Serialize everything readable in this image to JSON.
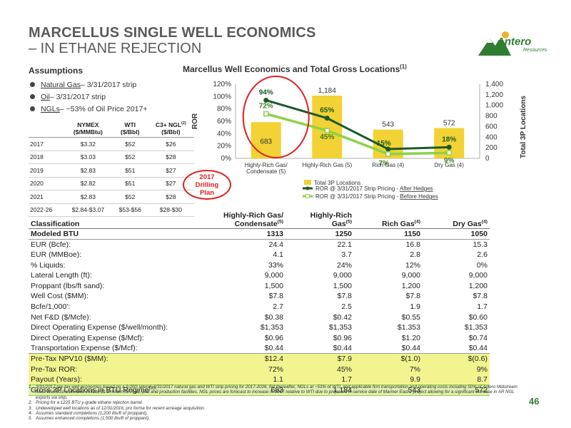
{
  "title": {
    "line1": "MARCELLUS SINGLE WELL ECONOMICS",
    "line2": "– IN ETHANE REJECTION"
  },
  "logo": {
    "word": "Antero",
    "sub": "Resources"
  },
  "colors": {
    "brand_green": "#2f7d32",
    "bar_yellow": "#f2d234",
    "after_hedge": "#1a5a2a",
    "before_hedge": "#8ed14a",
    "highlight": "#f2f58f",
    "total_row": "#dff0b0",
    "plan_red": "#e02020"
  },
  "assumptions": {
    "title": "Assumptions",
    "items": [
      {
        "name": "Natural Gas",
        "rest": " – 3/31/2017 strip"
      },
      {
        "name": "Oil",
        "rest": " – 3/31/2017 strip"
      },
      {
        "name": "NGLs",
        "rest": " – ~53% of Oil Price 2017+"
      }
    ]
  },
  "price_table": {
    "headers": [
      {
        "main": "",
        "sub": ""
      },
      {
        "main": "NYMEX",
        "sub": "($/MMBtu)"
      },
      {
        "main": "WTI",
        "sub": "($/Bbl)"
      },
      {
        "main": "C3+ NGL",
        "sup": "(2)",
        "sub": "($/Bbl)"
      }
    ],
    "rows": [
      [
        "2017",
        "$3.32",
        "$52",
        "$26"
      ],
      [
        "2018",
        "$3.03",
        "$52",
        "$28"
      ],
      [
        "2019",
        "$2.83",
        "$51",
        "$27"
      ],
      [
        "2020",
        "$2.82",
        "$51",
        "$27"
      ],
      [
        "2021",
        "$2.83",
        "$52",
        "$28"
      ],
      [
        "2022-26",
        "$2.84-$3.07",
        "$53-$56",
        "$28-$30"
      ]
    ]
  },
  "plan_label": {
    "line1": "2017",
    "line2": "Drilling",
    "line3": "Plan"
  },
  "chart_data": {
    "type": "bar",
    "title": "Marcellus Well Economics and Total Gross Locations",
    "title_sup": "(1)",
    "categories": [
      "Highly-Rich Gas/ Condensate (5)",
      "Highly-Rich Gas (5)",
      "Rich Gas (4)",
      "Dry Gas (4)"
    ],
    "category_lines": [
      [
        "Highly-Rich Gas/",
        "Condensate (5)"
      ],
      [
        "Highly-Rich Gas (5)"
      ],
      [
        "Rich Gas (4)"
      ],
      [
        "Dry Gas (4)"
      ]
    ],
    "bars": {
      "name": "Total 3P Locations",
      "values": [
        683,
        1184,
        543,
        572
      ],
      "labels": [
        "683",
        "1,184",
        "543",
        "572"
      ]
    },
    "series": [
      {
        "name": "ROR @ 3/31/2017 Strip Pricing - ",
        "name_underlined": "After Hedges",
        "values": [
          94,
          65,
          15,
          18
        ],
        "labels": [
          "94%",
          "65%",
          "15%",
          "18%"
        ]
      },
      {
        "name": "ROR @ 3/31/2017 Strip Pricing - ",
        "name_underlined": "Before Hedges",
        "values": [
          72,
          45,
          7,
          9
        ],
        "labels": [
          "72%",
          "45%",
          "7%",
          "9%"
        ]
      }
    ],
    "ylabel_left": "ROR",
    "ylabel_right": "Total 3P Locations",
    "ylim_left": [
      0,
      120
    ],
    "ylim_right": [
      0,
      1400
    ],
    "yticks_left": [
      "0%",
      "20%",
      "40%",
      "60%",
      "80%",
      "100%",
      "120%"
    ],
    "yticks_right": [
      "0",
      "200",
      "400",
      "600",
      "800",
      "1,000",
      "1,200",
      "1,400"
    ],
    "legend": "bottom"
  },
  "econ_table": {
    "headers": [
      {
        "text": "Classification"
      },
      {
        "line1": "Highly-Rich Gas/",
        "line2": "Condensate",
        "sup": "(5)"
      },
      {
        "line1": "Highly-Rich",
        "line2": "Gas",
        "sup": "(5)"
      },
      {
        "line1": "",
        "line2": "Rich Gas",
        "sup": "(4)"
      },
      {
        "line1": "",
        "line2": "Dry Gas",
        "sup": "(4)"
      }
    ],
    "rows": [
      {
        "label": "Modeled BTU",
        "values": [
          "1313",
          "1250",
          "1150",
          "1050"
        ],
        "style": "bold"
      },
      {
        "label": "EUR (Bcfe):",
        "values": [
          "24.4",
          "22.1",
          "16.8",
          "15.3"
        ]
      },
      {
        "label": "EUR (MMBoe):",
        "values": [
          "4.1",
          "3.7",
          "2.8",
          "2.6"
        ]
      },
      {
        "label": " % Liquids:",
        "values": [
          "33%",
          "24%",
          "12%",
          "0%"
        ]
      },
      {
        "label": "Lateral Length (ft):",
        "values": [
          "9,000",
          "9,000",
          "9,000",
          "9,000"
        ]
      },
      {
        "label": "Proppant (lbs/ft sand):",
        "values": [
          "1,500",
          "1,500",
          "1,200",
          "1,200"
        ]
      },
      {
        "label": "Well Cost ($MM):",
        "values": [
          "$7.8",
          "$7.8",
          "$7.8",
          "$7.8"
        ]
      },
      {
        "label": "Bcfe/1,000':",
        "values": [
          "2.7",
          "2.5",
          "1.9",
          "1.7"
        ]
      },
      {
        "label": "Net F&D ($/Mcfe):",
        "values": [
          "$0.38",
          "$0.42",
          "$0.55",
          "$0.60"
        ]
      },
      {
        "label": "Direct Operating Expense ($/well/month):",
        "values": [
          "$1,353",
          "$1,353",
          "$1,353",
          "$1,353"
        ]
      },
      {
        "label": "Direct Operating Expense ($/Mcf):",
        "values": [
          "$0.96",
          "$0.96",
          "$1.20",
          "$0.74"
        ]
      },
      {
        "label": "Transportation Expense ($/Mcf):",
        "values": [
          "$0.44",
          "$0.44",
          "$0.44",
          "$0.44"
        ]
      },
      {
        "label": "Pre-Tax NPV10 ($MM):",
        "values": [
          "$12.4",
          "$7.9",
          "$(1.0)",
          "$(0.6)"
        ],
        "style": "hl"
      },
      {
        "label": "Pre-Tax ROR:",
        "values": [
          "72%",
          "45%",
          "7%",
          "9%"
        ],
        "style": "hl"
      },
      {
        "label": "Payout (Years):",
        "values": [
          "1.1",
          "1.7",
          "9.9",
          "8.7"
        ],
        "style": "hl"
      },
      {
        "label": "Gross 3P Locations in BTU Regime",
        "sup": "(3)",
        "suffix": ":",
        "values": [
          "683",
          "1,184",
          "543",
          "572"
        ],
        "style": "total"
      }
    ]
  },
  "footnotes": [
    {
      "n": "1.",
      "text": "3/31/2017 pre-tax well economics based on a 9,000' lateral, 3/31/2017 natural gas and WTI strip pricing for 2017-2026, flat thereafter, NGLs at ~53% of WTI, and applicable firm transportation and operating costs including 50% of Antero Midstream fees.  Well cost estimates include $1.2 million for road, pad and production facilities. NGL prices are forecast to increase in 2017 relative to WTI due to projected in-service date of Mariner East 2 project allowing for a significant increase in AR NGL exports via ship."
    },
    {
      "n": "2.",
      "text": "Pricing for a 1225 BTU y-grade ethane rejection barrel."
    },
    {
      "n": "3.",
      "text": "Undeveloped well locations as of 12/31/2016, pro forma for recent acreage acquisition."
    },
    {
      "n": "4.",
      "text": "Assumes standard completions (1,200 lbs/ft of proppant)."
    },
    {
      "n": "5.",
      "text": "Assumes enhanced completions (1,500 lbs/ft of proppant)."
    }
  ],
  "page_number": "46"
}
